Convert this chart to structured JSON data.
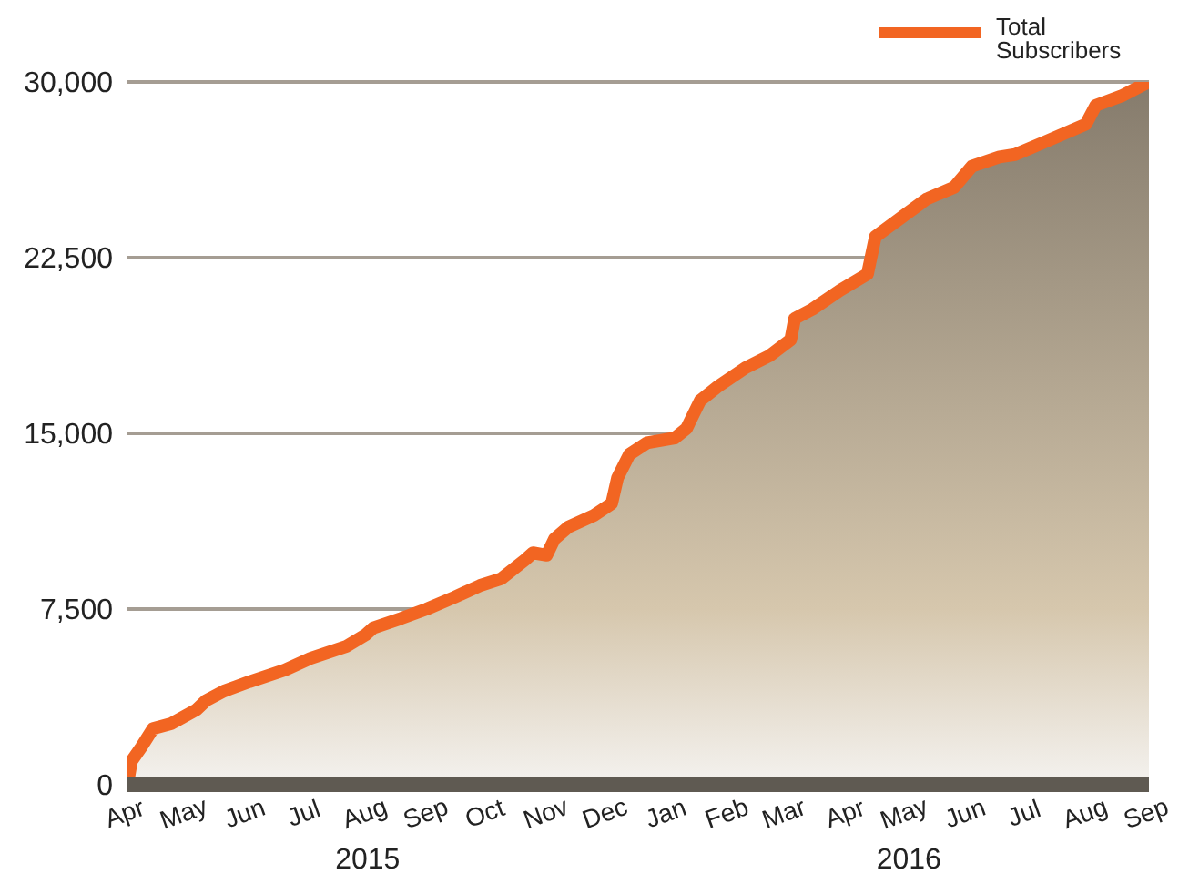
{
  "chart_data": {
    "type": "area",
    "x": [
      "2015-04-01",
      "2015-04-03",
      "2015-04-08",
      "2015-04-14",
      "2015-04-23",
      "2015-05-06",
      "2015-05-11",
      "2015-05-20",
      "2015-06-02",
      "2015-06-20",
      "2015-07-03",
      "2015-07-21",
      "2015-07-31",
      "2015-08-04",
      "2015-08-18",
      "2015-08-31",
      "2015-09-14",
      "2015-09-27",
      "2015-10-08",
      "2015-10-20",
      "2015-10-24",
      "2015-10-31",
      "2015-11-04",
      "2015-11-11",
      "2015-11-24",
      "2015-12-03",
      "2015-12-06",
      "2015-12-12",
      "2015-12-21",
      "2016-01-04",
      "2016-01-10",
      "2016-01-17",
      "2016-01-26",
      "2016-02-09",
      "2016-02-21",
      "2016-03-03",
      "2016-03-05",
      "2016-03-14",
      "2016-03-28",
      "2016-04-11",
      "2016-04-15",
      "2016-04-28",
      "2016-05-11",
      "2016-05-25",
      "2016-06-03",
      "2016-06-17",
      "2016-06-25",
      "2016-07-09",
      "2016-07-31",
      "2016-08-05",
      "2016-08-18",
      "2016-09-01"
    ],
    "series": [
      {
        "name": "Total Subscribers",
        "color": "#f26522",
        "values": [
          0,
          1000,
          1600,
          2400,
          2600,
          3200,
          3600,
          4000,
          4400,
          4900,
          5400,
          5900,
          6400,
          6700,
          7100,
          7500,
          8000,
          8500,
          8800,
          9600,
          9900,
          9800,
          10500,
          11000,
          11500,
          12000,
          13100,
          14100,
          14600,
          14800,
          15200,
          16400,
          17000,
          17800,
          18300,
          19000,
          19900,
          20300,
          21100,
          21800,
          23400,
          24200,
          25000,
          25500,
          26400,
          26800,
          26900,
          27400,
          28200,
          29000,
          29400,
          30000
        ]
      }
    ],
    "xlim": [
      "2015-04-01",
      "2016-09-01"
    ],
    "xticks": [
      {
        "value": "2015-04-01",
        "label": "Apr"
      },
      {
        "value": "2015-05-01",
        "label": "May"
      },
      {
        "value": "2015-06-01",
        "label": "Jun"
      },
      {
        "value": "2015-07-01",
        "label": "Jul"
      },
      {
        "value": "2015-08-01",
        "label": "Aug"
      },
      {
        "value": "2015-09-01",
        "label": "Sep"
      },
      {
        "value": "2015-10-01",
        "label": "Oct"
      },
      {
        "value": "2015-11-01",
        "label": "Nov"
      },
      {
        "value": "2015-12-01",
        "label": "Dec"
      },
      {
        "value": "2016-01-01",
        "label": "Jan"
      },
      {
        "value": "2016-02-01",
        "label": "Feb"
      },
      {
        "value": "2016-03-01",
        "label": "Mar"
      },
      {
        "value": "2016-04-01",
        "label": "Apr"
      },
      {
        "value": "2016-05-01",
        "label": "May"
      },
      {
        "value": "2016-06-01",
        "label": "Jun"
      },
      {
        "value": "2016-07-01",
        "label": "Jul"
      },
      {
        "value": "2016-08-01",
        "label": "Aug"
      },
      {
        "value": "2016-09-01",
        "label": "Sep"
      }
    ],
    "ylim": [
      0,
      30000
    ],
    "yticks": [
      0,
      {
        "value": 7500,
        "label": "7,500"
      },
      {
        "value": 15000,
        "label": "15,000"
      },
      {
        "value": 22500,
        "label": "22,500"
      },
      {
        "value": 30000,
        "label": "30,000"
      }
    ],
    "annotations": [
      "2015",
      "2016"
    ],
    "grid": "y",
    "legend": "top right",
    "marker": "none",
    "line_style": "solid"
  }
}
